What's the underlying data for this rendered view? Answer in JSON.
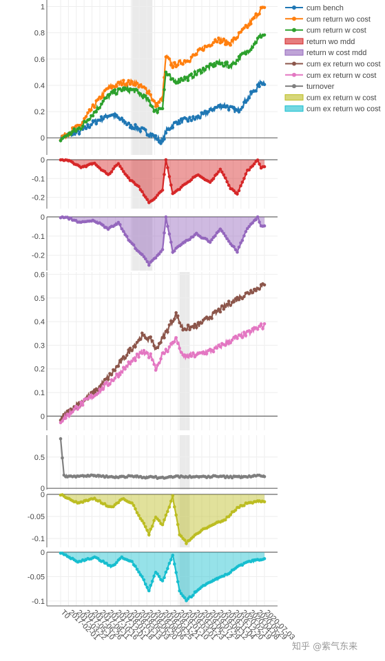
{
  "colors": {
    "cum_bench": "#1f77b4",
    "cum_return_wo_cost": "#ff7f0e",
    "cum_return_w_cost": "#2ca02c",
    "return_wo_mdd": "#d62728",
    "return_w_cost_mdd": "#9467bd",
    "cum_ex_return_wo_cost": "#8c564b",
    "cum_ex_return_w_cost": "#e377c2",
    "turnover": "#7f7f7f",
    "cum_ex_return_w_cost_mdd": "#bcbd22",
    "cum_ex_return_wo_cost_mdd": "#17becf",
    "grid": "#eeeeee",
    "axis": "#666666",
    "highlight": "#d9d9d9"
  },
  "watermark": "知乎 @紫气东来",
  "chart_data": [
    {
      "type": "line",
      "panel": "cumulative-return",
      "y_ticks": [
        "0",
        "0.2",
        "0.4",
        "0.6",
        "0.8",
        "1"
      ],
      "ylim": [
        -0.13,
        1.05
      ],
      "x_steps": 60,
      "series": [
        {
          "name": "cum bench",
          "color_key": "cum_bench",
          "keypoints": [
            [
              0,
              0.0
            ],
            [
              6,
              0.05
            ],
            [
              10,
              0.12
            ],
            [
              15,
              0.18
            ],
            [
              20,
              0.1
            ],
            [
              25,
              0.05
            ],
            [
              28,
              0.0
            ],
            [
              30,
              -0.03
            ],
            [
              31,
              0.05
            ],
            [
              34,
              0.12
            ],
            [
              40,
              0.15
            ],
            [
              45,
              0.22
            ],
            [
              48,
              0.25
            ],
            [
              52,
              0.2
            ],
            [
              55,
              0.3
            ],
            [
              59,
              0.42
            ]
          ]
        },
        {
          "name": "cum return wo cost",
          "color_key": "cum_return_wo_cost",
          "keypoints": [
            [
              0,
              0.0
            ],
            [
              6,
              0.1
            ],
            [
              10,
              0.25
            ],
            [
              14,
              0.38
            ],
            [
              18,
              0.42
            ],
            [
              22,
              0.42
            ],
            [
              26,
              0.35
            ],
            [
              28,
              0.25
            ],
            [
              30,
              0.3
            ],
            [
              31,
              0.62
            ],
            [
              33,
              0.55
            ],
            [
              38,
              0.6
            ],
            [
              42,
              0.68
            ],
            [
              46,
              0.75
            ],
            [
              50,
              0.72
            ],
            [
              55,
              0.85
            ],
            [
              59,
              0.98
            ]
          ]
        },
        {
          "name": "cum return w cost",
          "color_key": "cum_return_w_cost",
          "keypoints": [
            [
              0,
              -0.01
            ],
            [
              6,
              0.08
            ],
            [
              10,
              0.2
            ],
            [
              14,
              0.32
            ],
            [
              18,
              0.37
            ],
            [
              22,
              0.36
            ],
            [
              26,
              0.28
            ],
            [
              28,
              0.2
            ],
            [
              30,
              0.24
            ],
            [
              31,
              0.5
            ],
            [
              33,
              0.43
            ],
            [
              38,
              0.46
            ],
            [
              42,
              0.52
            ],
            [
              46,
              0.57
            ],
            [
              50,
              0.55
            ],
            [
              55,
              0.66
            ],
            [
              59,
              0.78
            ]
          ]
        }
      ]
    },
    {
      "type": "area",
      "panel": "return-wo-mdd",
      "y_ticks": [
        "0",
        "-0.1",
        "-0.2"
      ],
      "ylim": [
        -0.26,
        0.0
      ],
      "x_steps": 60,
      "series": [
        {
          "name": "return wo mdd",
          "color_key": "return_wo_mdd",
          "keypoints": [
            [
              0,
              0
            ],
            [
              3,
              -0.01
            ],
            [
              6,
              -0.04
            ],
            [
              10,
              -0.02
            ],
            [
              14,
              -0.08
            ],
            [
              17,
              -0.02
            ],
            [
              20,
              -0.1
            ],
            [
              23,
              -0.14
            ],
            [
              25,
              -0.2
            ],
            [
              26,
              -0.23
            ],
            [
              28,
              -0.2
            ],
            [
              30,
              -0.16
            ],
            [
              31,
              0
            ],
            [
              33,
              -0.18
            ],
            [
              36,
              -0.14
            ],
            [
              40,
              -0.08
            ],
            [
              44,
              -0.12
            ],
            [
              47,
              -0.05
            ],
            [
              50,
              -0.15
            ],
            [
              52,
              -0.18
            ],
            [
              55,
              -0.06
            ],
            [
              58,
              0
            ],
            [
              59,
              -0.04
            ]
          ]
        }
      ]
    },
    {
      "type": "area",
      "panel": "return-w-cost-mdd",
      "y_ticks": [
        "0",
        "-0.1",
        "-0.2"
      ],
      "ylim": [
        -0.28,
        0.0
      ],
      "x_steps": 60,
      "series": [
        {
          "name": "return w cost mdd",
          "color_key": "return_w_cost_mdd",
          "keypoints": [
            [
              0,
              0
            ],
            [
              3,
              -0.01
            ],
            [
              6,
              -0.03
            ],
            [
              10,
              -0.02
            ],
            [
              14,
              -0.06
            ],
            [
              17,
              -0.03
            ],
            [
              20,
              -0.12
            ],
            [
              23,
              -0.18
            ],
            [
              25,
              -0.22
            ],
            [
              26,
              -0.25
            ],
            [
              28,
              -0.21
            ],
            [
              30,
              -0.17
            ],
            [
              31,
              0
            ],
            [
              33,
              -0.18
            ],
            [
              36,
              -0.14
            ],
            [
              40,
              -0.09
            ],
            [
              44,
              -0.13
            ],
            [
              47,
              -0.06
            ],
            [
              50,
              -0.14
            ],
            [
              52,
              -0.18
            ],
            [
              55,
              -0.06
            ],
            [
              58,
              0
            ],
            [
              59,
              -0.05
            ]
          ]
        }
      ]
    },
    {
      "type": "line",
      "panel": "cumulative-excess-return",
      "y_ticks": [
        "0",
        "0.1",
        "0.2",
        "0.3",
        "0.4",
        "0.5",
        "0.6"
      ],
      "ylim": [
        -0.06,
        0.61
      ],
      "x_steps": 60,
      "series": [
        {
          "name": "cum ex return wo cost",
          "color_key": "cum_ex_return_wo_cost",
          "keypoints": [
            [
              0,
              -0.01
            ],
            [
              5,
              0.05
            ],
            [
              10,
              0.1
            ],
            [
              15,
              0.18
            ],
            [
              20,
              0.27
            ],
            [
              24,
              0.34
            ],
            [
              27,
              0.32
            ],
            [
              28,
              0.28
            ],
            [
              30,
              0.33
            ],
            [
              32,
              0.38
            ],
            [
              34,
              0.43
            ],
            [
              36,
              0.37
            ],
            [
              40,
              0.38
            ],
            [
              45,
              0.43
            ],
            [
              50,
              0.48
            ],
            [
              55,
              0.52
            ],
            [
              59,
              0.55
            ]
          ]
        },
        {
          "name": "cum ex return w cost",
          "color_key": "cum_ex_return_w_cost",
          "keypoints": [
            [
              0,
              -0.02
            ],
            [
              5,
              0.04
            ],
            [
              10,
              0.09
            ],
            [
              15,
              0.15
            ],
            [
              20,
              0.22
            ],
            [
              24,
              0.27
            ],
            [
              27,
              0.25
            ],
            [
              28,
              0.2
            ],
            [
              30,
              0.26
            ],
            [
              32,
              0.29
            ],
            [
              34,
              0.33
            ],
            [
              36,
              0.25
            ],
            [
              40,
              0.26
            ],
            [
              45,
              0.28
            ],
            [
              50,
              0.32
            ],
            [
              55,
              0.35
            ],
            [
              59,
              0.38
            ]
          ]
        }
      ]
    },
    {
      "type": "line",
      "panel": "turnover",
      "y_ticks": [
        "0",
        "0.5"
      ],
      "ylim": [
        -0.02,
        0.85
      ],
      "x_steps": 60,
      "series": [
        {
          "name": "turnover",
          "color_key": "turnover",
          "keypoints": [
            [
              0,
              0.8
            ],
            [
              1,
              0.2
            ],
            [
              5,
              0.19
            ],
            [
              10,
              0.2
            ],
            [
              15,
              0.18
            ],
            [
              20,
              0.19
            ],
            [
              25,
              0.18
            ],
            [
              30,
              0.17
            ],
            [
              35,
              0.19
            ],
            [
              40,
              0.18
            ],
            [
              45,
              0.19
            ],
            [
              50,
              0.18
            ],
            [
              55,
              0.19
            ],
            [
              59,
              0.2
            ]
          ]
        }
      ]
    },
    {
      "type": "area",
      "panel": "cum-ex-return-w-cost-mdd",
      "y_ticks": [
        "0",
        "-0.05",
        "-0.1"
      ],
      "ylim": [
        -0.12,
        0.0
      ],
      "x_steps": 60,
      "series": [
        {
          "name": "cum ex return w cost",
          "color_key": "cum_ex_return_w_cost_mdd",
          "keypoints": [
            [
              0,
              0
            ],
            [
              5,
              -0.02
            ],
            [
              10,
              -0.01
            ],
            [
              15,
              -0.03
            ],
            [
              18,
              -0.01
            ],
            [
              21,
              -0.02
            ],
            [
              24,
              -0.06
            ],
            [
              26,
              -0.09
            ],
            [
              28,
              -0.05
            ],
            [
              30,
              -0.07
            ],
            [
              33,
              -0.005
            ],
            [
              35,
              -0.09
            ],
            [
              37,
              -0.11
            ],
            [
              40,
              -0.09
            ],
            [
              44,
              -0.07
            ],
            [
              48,
              -0.06
            ],
            [
              52,
              -0.03
            ],
            [
              55,
              -0.02
            ],
            [
              59,
              -0.015
            ]
          ]
        }
      ]
    },
    {
      "type": "area",
      "panel": "cum-ex-return-wo-cost-mdd",
      "y_ticks": [
        "0",
        "-0.05",
        "-0.1"
      ],
      "ylim": [
        -0.11,
        0.0
      ],
      "x_steps": 60,
      "series": [
        {
          "name": "cum ex return wo cost",
          "color_key": "cum_ex_return_wo_cost_mdd",
          "keypoints": [
            [
              0,
              0
            ],
            [
              5,
              -0.02
            ],
            [
              10,
              -0.01
            ],
            [
              15,
              -0.03
            ],
            [
              18,
              -0.01
            ],
            [
              21,
              -0.02
            ],
            [
              24,
              -0.05
            ],
            [
              26,
              -0.08
            ],
            [
              28,
              -0.04
            ],
            [
              30,
              -0.06
            ],
            [
              33,
              -0.005
            ],
            [
              35,
              -0.08
            ],
            [
              37,
              -0.1
            ],
            [
              40,
              -0.08
            ],
            [
              44,
              -0.06
            ],
            [
              48,
              -0.05
            ],
            [
              52,
              -0.03
            ],
            [
              55,
              -0.02
            ],
            [
              59,
              -0.015
            ]
          ]
        }
      ]
    }
  ],
  "x_tick_labels": [
    "T0",
    "2017-02-01",
    "2017-03-22",
    "2017-05-10",
    "2017-06-26",
    "2017-08-11",
    "2017-10-16",
    "2017-12-01",
    "2018-01-18",
    "2018-03-13",
    "2018-05-03",
    "2018-06-20",
    "2018-08-06",
    "2018-09-25",
    "2018-11-21",
    "2019-01-10",
    "2019-03-01",
    "2019-04-23",
    "2019-06-12",
    "2019-07-29",
    "2019-09-12",
    "2019-11-04",
    "2019-12-20",
    "2020-02-19",
    "2020-04-08",
    "2020-05-29",
    "2020-07-03"
  ],
  "x_tick_visible": [
    "T0",
    "2017-02-01",
    "2017-03-22",
    "2017-05-10",
    "2017-06-26",
    "2017-08-11",
    "2017-10-16",
    "2017-12-01",
    "2018-01-18",
    "2018-03-13",
    "2018-05-03",
    "2018-06-20",
    "2018-08-06",
    "2018-09-25",
    "2018-11-21",
    "2019-01-10",
    "2019-03-01",
    "2019-04-23",
    "2019-06-12",
    "2019-07-29",
    "2019-09-12",
    "2019-11-04",
    "2019-12-20",
    "2020-02-19",
    "2020-04-08",
    "2020-05-29",
    "2020-07-03"
  ],
  "highlight_ranges": [
    {
      "panels": [
        0,
        1,
        2
      ],
      "from_step": 21,
      "to_step": 27
    },
    {
      "panels": [
        3,
        4,
        5,
        6
      ],
      "from_step": 35,
      "to_step": 38
    }
  ],
  "legend": [
    {
      "label": "cum bench",
      "color_key": "cum_bench",
      "kind": "line"
    },
    {
      "label": "cum return wo cost",
      "color_key": "cum_return_wo_cost",
      "kind": "line"
    },
    {
      "label": "cum return w cost",
      "color_key": "cum_return_w_cost",
      "kind": "line"
    },
    {
      "label": "return wo mdd",
      "color_key": "return_wo_mdd",
      "kind": "area"
    },
    {
      "label": "return w cost mdd",
      "color_key": "return_w_cost_mdd",
      "kind": "area"
    },
    {
      "label": "cum ex return wo cost",
      "color_key": "cum_ex_return_wo_cost",
      "kind": "line"
    },
    {
      "label": "cum ex return w cost",
      "color_key": "cum_ex_return_w_cost",
      "kind": "line"
    },
    {
      "label": "turnover",
      "color_key": "turnover",
      "kind": "line"
    },
    {
      "label": "cum ex return w cost",
      "color_key": "cum_ex_return_w_cost_mdd",
      "kind": "area"
    },
    {
      "label": "cum ex return wo cost",
      "color_key": "cum_ex_return_wo_cost_mdd",
      "kind": "area"
    }
  ]
}
